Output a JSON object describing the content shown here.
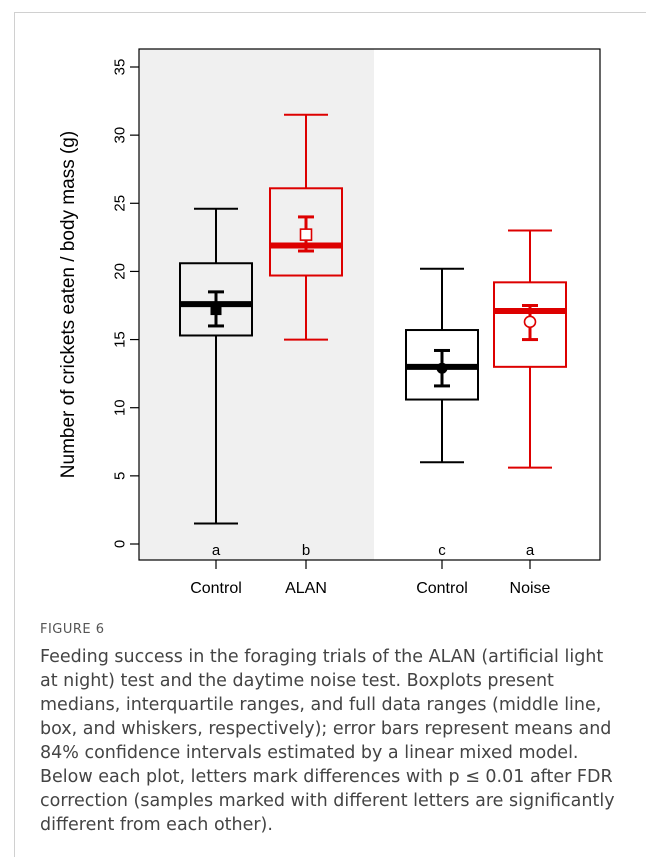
{
  "figure": {
    "label": "FIGURE 6",
    "caption": "Feeding success in the foraging trials of the ALAN (artificial light at night) test and the daytime noise test. Boxplots present medians, interquartile ranges, and full data ranges (middle line, box, and whiskers, respectively); error bars represent means and 84% confidence intervals estimated by a linear mixed model. Below each plot, letters mark differences with p ≤ 0.01 after FDR correction (samples marked with different letters are significantly different from each other)."
  },
  "colors": {
    "control": "#000000",
    "treatment": "#dd0000",
    "shade": "#f0f0f0"
  },
  "chart_data": {
    "type": "box",
    "ylabel": "Number of crickets eaten / body mass (g)",
    "ylim": [
      0,
      35
    ],
    "yticks": [
      0,
      5,
      10,
      15,
      20,
      25,
      30,
      35
    ],
    "shaded_panel": "left",
    "groups": [
      {
        "label": "Control",
        "color": "control",
        "min": 1.5,
        "q1": 15.3,
        "median": 17.6,
        "q3": 20.6,
        "max": 24.6,
        "mean": 17.2,
        "ci_low": 16.0,
        "ci_high": 18.5,
        "mean_marker": "filled-square",
        "letter": "a"
      },
      {
        "label": "ALAN",
        "color": "treatment",
        "min": 15.0,
        "q1": 19.7,
        "median": 21.9,
        "q3": 26.1,
        "max": 31.5,
        "mean": 22.7,
        "ci_low": 21.5,
        "ci_high": 24.0,
        "mean_marker": "open-square",
        "letter": "b"
      },
      {
        "label": "Control",
        "color": "control",
        "min": 6.0,
        "q1": 10.6,
        "median": 13.0,
        "q3": 15.7,
        "max": 20.2,
        "mean": 12.9,
        "ci_low": 11.6,
        "ci_high": 14.2,
        "mean_marker": "filled-circle",
        "letter": "c"
      },
      {
        "label": "Noise",
        "color": "treatment",
        "min": 5.6,
        "q1": 13.0,
        "median": 17.1,
        "q3": 19.2,
        "max": 23.0,
        "mean": 16.3,
        "ci_low": 15.0,
        "ci_high": 17.5,
        "mean_marker": "open-circle",
        "letter": "a"
      }
    ]
  }
}
